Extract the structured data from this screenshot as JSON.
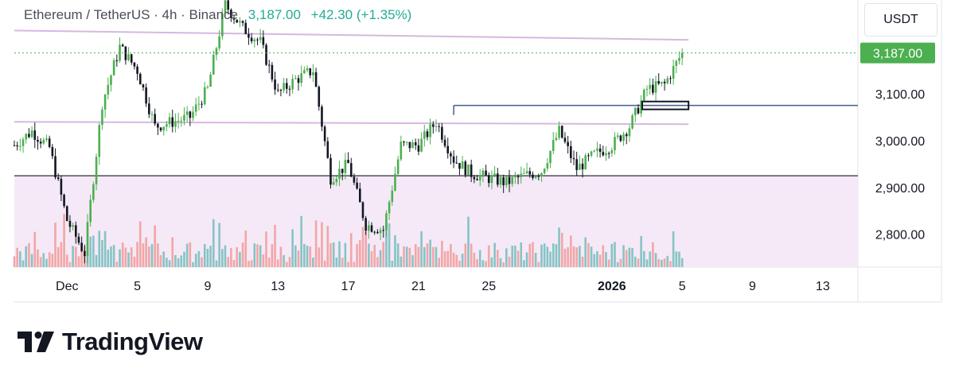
{
  "header": {
    "pair_label": "Ethereum / TetherUS · 4h · Binance",
    "price": "3,187.00",
    "change": "+42.30 (+1.35%)"
  },
  "axis": {
    "currency": "USDT",
    "current_price_label": "3,187.00"
  },
  "brand": {
    "name": "TradingView",
    "logo_icon": "tradingview-logo-icon"
  },
  "colors": {
    "up": "#4caf50",
    "down": "#131722",
    "volume_up": "#86c4c4",
    "volume_down": "#f2a6a6",
    "zone_fill": "#f5e9f7",
    "channel_line": "#d6b8e0",
    "support_line": "#131722",
    "range_line": "#3f5f8f",
    "price_tag": "#4caf50"
  },
  "chart_data": {
    "type": "candlestick",
    "title": "Ethereum / TetherUS · 4h · Binance",
    "y_ticks": [
      {
        "value": 3100,
        "label": "3,100.00"
      },
      {
        "value": 3000,
        "label": "3,000.00"
      },
      {
        "value": 2900,
        "label": "2,900.00"
      },
      {
        "value": 2800,
        "label": "2,800.00"
      }
    ],
    "x_ticks": [
      {
        "date": "2025-12-01",
        "label": "Dec",
        "bold": false
      },
      {
        "date": "2025-12-05",
        "label": "5",
        "bold": false
      },
      {
        "date": "2025-12-09",
        "label": "9",
        "bold": false
      },
      {
        "date": "2025-12-13",
        "label": "13",
        "bold": false
      },
      {
        "date": "2025-12-17",
        "label": "17",
        "bold": false
      },
      {
        "date": "2025-12-21",
        "label": "21",
        "bold": false
      },
      {
        "date": "2025-12-25",
        "label": "25",
        "bold": false
      },
      {
        "date": "2026-01-01",
        "label": "2026",
        "bold": true
      },
      {
        "date": "2026-01-05",
        "label": "5",
        "bold": false
      },
      {
        "date": "2026-01-09",
        "label": "9",
        "bold": false
      },
      {
        "date": "2026-01-13",
        "label": "13",
        "bold": false
      }
    ],
    "x_range": [
      "2025-11-28",
      "2026-01-15"
    ],
    "y_range": [
      2730,
      3300
    ],
    "last_price": 3187,
    "close_path": [
      {
        "date": "2025-11-28",
        "close": 2990
      },
      {
        "date": "2025-11-29",
        "close": 3020
      },
      {
        "date": "2025-11-30",
        "close": 2985
      },
      {
        "date": "2025-12-01",
        "close": 2830
      },
      {
        "date": "2025-12-02",
        "close": 2760
      },
      {
        "date": "2025-12-03",
        "close": 3080
      },
      {
        "date": "2025-12-04",
        "close": 3200
      },
      {
        "date": "2025-12-05",
        "close": 3150
      },
      {
        "date": "2025-12-06",
        "close": 3030
      },
      {
        "date": "2025-12-07",
        "close": 3040
      },
      {
        "date": "2025-12-08",
        "close": 3050
      },
      {
        "date": "2025-12-09",
        "close": 3110
      },
      {
        "date": "2025-12-10",
        "close": 3290
      },
      {
        "date": "2025-12-11",
        "close": 3240
      },
      {
        "date": "2025-12-12",
        "close": 3210
      },
      {
        "date": "2025-12-13",
        "close": 3100
      },
      {
        "date": "2025-12-14",
        "close": 3130
      },
      {
        "date": "2025-12-15",
        "close": 3150
      },
      {
        "date": "2025-12-16",
        "close": 2920
      },
      {
        "date": "2025-12-17",
        "close": 2950
      },
      {
        "date": "2025-12-18",
        "close": 2820
      },
      {
        "date": "2025-12-19",
        "close": 2810
      },
      {
        "date": "2025-12-20",
        "close": 2990
      },
      {
        "date": "2025-12-21",
        "close": 2990
      },
      {
        "date": "2025-12-22",
        "close": 3040
      },
      {
        "date": "2025-12-23",
        "close": 2960
      },
      {
        "date": "2025-12-24",
        "close": 2930
      },
      {
        "date": "2025-12-25",
        "close": 2920
      },
      {
        "date": "2025-12-26",
        "close": 2910
      },
      {
        "date": "2025-12-27",
        "close": 2925
      },
      {
        "date": "2025-12-28",
        "close": 2935
      },
      {
        "date": "2025-12-29",
        "close": 3020
      },
      {
        "date": "2025-12-30",
        "close": 2940
      },
      {
        "date": "2025-12-31",
        "close": 2970
      },
      {
        "date": "2026-01-01",
        "close": 2990
      },
      {
        "date": "2026-01-02",
        "close": 3030
      },
      {
        "date": "2026-01-03",
        "close": 3110
      },
      {
        "date": "2026-01-04",
        "close": 3120
      },
      {
        "date": "2026-01-05",
        "close": 3187
      }
    ],
    "levels": {
      "support": 2925,
      "range_high": 3075,
      "channel_upper_start": 3235,
      "channel_upper_end": 3215,
      "channel_lower_start": 3040,
      "channel_lower_end": 3035
    },
    "breakout_box": {
      "from": "2026-01-03",
      "to": "2026-01-05",
      "low": 3070,
      "high": 3080
    }
  }
}
